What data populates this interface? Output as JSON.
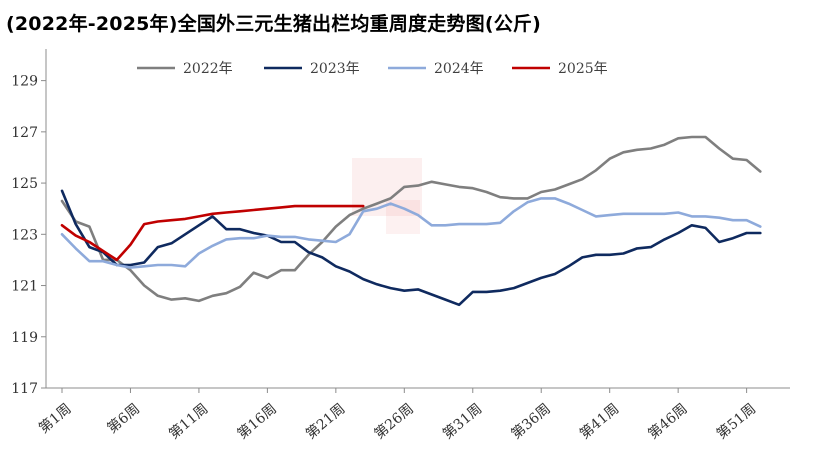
{
  "chart_data": {
    "type": "line",
    "title": "(2022年-2025年)全国外三元生猪出栏均重周度走势图(公斤)",
    "xlabel": "",
    "ylabel": "",
    "ylim": [
      117,
      130
    ],
    "yticks": [
      117,
      119,
      121,
      123,
      125,
      127,
      129
    ],
    "x": [
      1,
      2,
      3,
      4,
      5,
      6,
      7,
      8,
      9,
      10,
      11,
      12,
      13,
      14,
      15,
      16,
      17,
      18,
      19,
      20,
      21,
      22,
      23,
      24,
      25,
      26,
      27,
      28,
      29,
      30,
      31,
      32,
      33,
      34,
      35,
      36,
      37,
      38,
      39,
      40,
      41,
      42,
      43,
      44,
      45,
      46,
      47,
      48,
      49,
      50,
      51,
      52,
      53
    ],
    "x_tick_labels": [
      {
        "x": 1,
        "label": "第1周"
      },
      {
        "x": 6,
        "label": "第6周"
      },
      {
        "x": 11,
        "label": "第11周"
      },
      {
        "x": 16,
        "label": "第16周"
      },
      {
        "x": 21,
        "label": "第21周"
      },
      {
        "x": 26,
        "label": "第26周"
      },
      {
        "x": 31,
        "label": "第31周"
      },
      {
        "x": 36,
        "label": "第36周"
      },
      {
        "x": 41,
        "label": "第41周"
      },
      {
        "x": 46,
        "label": "第46周"
      },
      {
        "x": 51,
        "label": "第51周"
      }
    ],
    "legend_position": "top",
    "grid": false,
    "series": [
      {
        "name": "2022年",
        "color": "#7f7f7f",
        "values": [
          124.3,
          123.5,
          123.3,
          122.0,
          122.0,
          121.6,
          121.0,
          120.6,
          120.45,
          120.5,
          120.4,
          120.6,
          120.7,
          120.95,
          121.5,
          121.3,
          121.6,
          121.6,
          122.2,
          122.7,
          123.3,
          123.75,
          124.0,
          124.2,
          124.4,
          124.85,
          124.9,
          125.05,
          124.95,
          124.85,
          124.8,
          124.65,
          124.45,
          124.4,
          124.4,
          124.65,
          124.75,
          124.95,
          125.15,
          125.5,
          125.95,
          126.2,
          126.3,
          126.35,
          126.5,
          126.75,
          126.8,
          126.8,
          126.35,
          125.95,
          125.9,
          125.45,
          null
        ]
      },
      {
        "name": "2023年",
        "color": "#0f2a5f",
        "values": [
          124.7,
          123.4,
          122.5,
          122.3,
          121.8,
          121.8,
          121.9,
          122.5,
          122.65,
          123.0,
          123.35,
          123.7,
          123.2,
          123.2,
          123.05,
          122.95,
          122.7,
          122.7,
          122.3,
          122.1,
          121.75,
          121.55,
          121.25,
          121.05,
          120.9,
          120.8,
          120.85,
          120.65,
          120.45,
          120.25,
          120.75,
          120.75,
          120.8,
          120.9,
          121.1,
          121.3,
          121.45,
          121.75,
          122.1,
          122.2,
          122.2,
          122.25,
          122.45,
          122.5,
          122.8,
          123.05,
          123.35,
          123.25,
          122.7,
          122.85,
          123.05,
          123.05,
          null
        ]
      },
      {
        "name": "2024年",
        "color": "#8eaadb",
        "values": [
          123.0,
          122.45,
          121.95,
          121.95,
          121.8,
          121.7,
          121.75,
          121.8,
          121.8,
          121.75,
          122.25,
          122.55,
          122.8,
          122.85,
          122.85,
          122.95,
          122.9,
          122.9,
          122.8,
          122.75,
          122.7,
          123.0,
          123.9,
          124.0,
          124.2,
          124.0,
          123.75,
          123.35,
          123.35,
          123.4,
          123.4,
          123.4,
          123.45,
          123.9,
          124.25,
          124.4,
          124.4,
          124.2,
          123.95,
          123.7,
          123.75,
          123.8,
          123.8,
          123.8,
          123.8,
          123.85,
          123.7,
          123.7,
          123.65,
          123.55,
          123.55,
          123.3,
          null
        ]
      },
      {
        "name": "2025年",
        "color": "#c00000",
        "values": [
          123.35,
          122.95,
          122.7,
          122.35,
          122.0,
          122.6,
          123.4,
          123.5,
          123.55,
          123.6,
          123.7,
          123.8,
          123.85,
          123.9,
          123.95,
          124.0,
          124.05,
          124.1,
          124.1,
          124.1,
          124.1,
          124.1,
          124.1,
          null,
          null,
          null,
          null,
          null,
          null,
          null,
          null,
          null,
          null,
          null,
          null,
          null,
          null,
          null,
          null,
          null,
          null,
          null,
          null,
          null,
          null,
          null,
          null,
          null,
          null,
          null,
          null,
          null,
          null
        ]
      }
    ]
  }
}
